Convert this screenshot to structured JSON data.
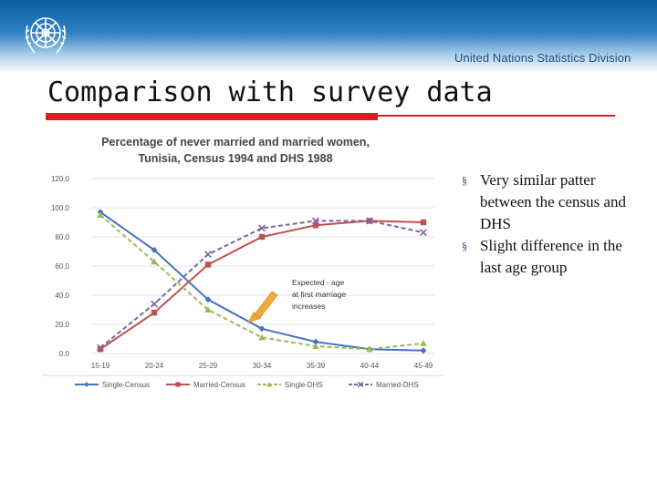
{
  "header": {
    "division": "United Nations Statistics Division"
  },
  "slide": {
    "title": "Comparison with survey data",
    "bullets": [
      {
        "marker": "§",
        "text": "Very similar patter between the census and DHS"
      },
      {
        "marker": "§",
        "text": "Slight difference in the last age group"
      }
    ]
  },
  "colors": {
    "single_census": "#4472c4",
    "married_census": "#c0504d",
    "single_dhs": "#9bbb59",
    "married_dhs": "#8064a2",
    "arrow": "#f2a93b",
    "accent_red": "#d92020"
  },
  "chart_data": {
    "type": "line",
    "title": "Percentage of never married and married women, Tunisia, Census 1994 and DHS 1988",
    "title_lines": [
      "Percentage of never married and married women,",
      "Tunisia, Census 1994 and DHS 1988"
    ],
    "categories": [
      "15-19",
      "20-24",
      "25-29",
      "30-34",
      "35-39",
      "40-44",
      "45-49"
    ],
    "ylim": [
      0,
      120
    ],
    "yticks": [
      "0.0",
      "20.0",
      "40.0",
      "60.0",
      "80.0",
      "100.0",
      "120.0"
    ],
    "xlabel": "",
    "ylabel": "",
    "legend_position": "bottom",
    "series": [
      {
        "name": "Single-Census",
        "values": [
          97,
          71,
          37,
          17,
          8,
          3,
          2
        ],
        "style": "solid",
        "marker": "diamond"
      },
      {
        "name": "Married-Census",
        "values": [
          3,
          28,
          61,
          80,
          88,
          91,
          90
        ],
        "style": "solid",
        "marker": "square"
      },
      {
        "name": "Single-DHS",
        "values": [
          95,
          63,
          30,
          11,
          5,
          3,
          7
        ],
        "style": "dashed",
        "marker": "triangle"
      },
      {
        "name": "Married-DHS",
        "values": [
          4,
          34,
          68,
          86,
          91,
          91,
          83
        ],
        "style": "dashed",
        "marker": "x"
      }
    ],
    "annotation": {
      "lines": [
        "Expected - age",
        "at first marriage",
        "increases"
      ]
    }
  }
}
